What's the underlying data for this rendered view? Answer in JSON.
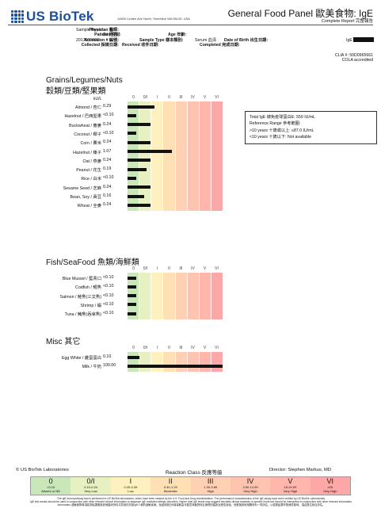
{
  "header": {
    "logo_text": "US BioTek",
    "address": "14600 Linden Ave North, Shoreline WA 98133, USA",
    "panel_title": "General Food Panel 歐美食物: IgE",
    "panel_sub": "Complete Report 完整報告"
  },
  "patient": {
    "physician_label": "Physician 醫師:",
    "physician_value": "Sample Report",
    "patient_label": "Patient 姓名:",
    "sex_label": "Sex 性別:",
    "age_label": "Age 年齡:",
    "accession_label": "Accession # 編號:",
    "accession_value": "2017000000",
    "sample_type_label": "Sample Type 樣本類別:",
    "sample_type_value": "Serum 血清",
    "dob_label": "Date of Birth 出生日期:",
    "collected_label": "Collected 採檢日期:",
    "received_label": "Received 收件日期:",
    "completed_label": "Completed 完成日期:",
    "ige_label": "IgE",
    "clia": "CLIA #: 50D0965661",
    "cola": "COLA accredited"
  },
  "scale_labels": [
    "0",
    "0/I",
    "I",
    "II",
    "III",
    "IV",
    "V",
    "VI"
  ],
  "unit_label": "kU/L",
  "colors": {
    "cls0": "#c9e7b8",
    "cls0i": "#e6f0c0",
    "cls1": "#fff1bf",
    "cls2": "#ffe0b5",
    "cls3": "#ffd0b4",
    "cls4": "#ffc4b0",
    "cls5": "#ffb6ad",
    "cls6": "#fda8a8"
  },
  "sections": [
    {
      "title": "Grains/Legumes/Nuts",
      "subtitle": "穀類/豆類/堅果類",
      "items": [
        {
          "label": "Almond / 杏仁",
          "value": "0.29",
          "level": 0.29
        },
        {
          "label": "Hazelnut / 巴西堅果",
          "value": "<0.10",
          "level": 0.05
        },
        {
          "label": "Buckwheat / 蕎麥",
          "value": "0.24",
          "level": 0.24
        },
        {
          "label": "Coconut / 椰子",
          "value": "<0.10",
          "level": 0.05
        },
        {
          "label": "Corn / 粟米",
          "value": "0.24",
          "level": 0.24
        },
        {
          "label": "Hazelnut / 榛子",
          "value": "1.07",
          "level": 1.07
        },
        {
          "label": "Oat / 燕麥",
          "value": "0.24",
          "level": 0.24
        },
        {
          "label": "Peanut / 花生",
          "value": "0.19",
          "level": 0.19
        },
        {
          "label": "Rice / 白米",
          "value": "<0.10",
          "level": 0.05
        },
        {
          "label": "Sesame Seed / 芝麻",
          "value": "0.24",
          "level": 0.24
        },
        {
          "label": "Bean, Soy / 黃豆",
          "value": "0.16",
          "level": 0.16
        },
        {
          "label": "Wheat / 全麥",
          "value": "0.24",
          "level": 0.24
        }
      ]
    },
    {
      "title": "Fish/SeaFood 魚類/海鮮類",
      "subtitle": "",
      "items": [
        {
          "label": "Blue Mussel / 藍青口",
          "value": "<0.10",
          "level": 0.05
        },
        {
          "label": "Codfish / 鱈魚",
          "value": "<0.10",
          "level": 0.05
        },
        {
          "label": "Salmon / 鮭魚(三文魚)",
          "value": "<0.10",
          "level": 0.05
        },
        {
          "label": "Shrimp / 蝦",
          "value": "<0.10",
          "level": 0.05
        },
        {
          "label": "Tuna / 鮪魚(吞拿魚)",
          "value": "<0.10",
          "level": 0.05
        }
      ]
    },
    {
      "title": "Misc 其它",
      "subtitle": "",
      "items": [
        {
          "label": "Egg White / 雞蛋蛋白",
          "value": "0.10",
          "level": 0.1
        },
        {
          "label": "Milk / 牛奶",
          "value": "100.00",
          "level": 100
        }
      ]
    }
  ],
  "reference": {
    "total_ige": "Total IgE 總免疫球蛋白E: 550 IU/mL",
    "range_title": "Reference Range 參考範圍:",
    "range_adult": ">10 years 十歲或以上: ≤87.0 IU/mL",
    "range_child": "<10 years 十歲以下: Not available"
  },
  "footer": {
    "company": "© US BioTek Laboratories",
    "reaction_class": "Reaction Class 反應等級",
    "director": "Director: Stephen Markus, MD",
    "legend": [
      {
        "cls": "0",
        "range": "<0.10",
        "desc": "Absent or ND"
      },
      {
        "cls": "0/I",
        "range": "0.10-0.24",
        "desc": "Very Low"
      },
      {
        "cls": "I",
        "range": "0.25-0.39",
        "desc": "Low"
      },
      {
        "cls": "II",
        "range": "0.40-1.29",
        "desc": "Moderate"
      },
      {
        "cls": "III",
        "range": "1.30-3.89",
        "desc": "High"
      },
      {
        "cls": "IV",
        "range": "3.90-14.99",
        "desc": "Very High"
      },
      {
        "cls": "V",
        "range": "15-24.99",
        "desc": "Very High"
      },
      {
        "cls": "VI",
        "range": "≥25",
        "desc": "Very High"
      }
    ],
    "disclaimer_1": "The IgE ImmunoAssay test is performed in US BioTek laboratories, which have been cleared by the U.S. Food and Drug Administration. The performance characteristics of the IgE assay have been verified by US BioTek Laboratories.",
    "disclaimer_2": "IgE test results should be used in conjunction with other relevant clinical information to diagnose IgE-mediated allergic disorders. Higher total IgE levels may suggest elevated clinical reactivity to specific foods but should be interpreted in conjunction with other relevant information.",
    "disclaimer_3": "Information 過敏食物專項檢測結果應與其他臨床資料共同用於診斷IgE介導的過敏疾病。免疫球蛋白E總量較高可能意味著對特定食物的臨床反應性增強，但應與其他相關資料一同評估。以檢驗結果作醫療診斷時，須由醫生綜合評估。"
  }
}
